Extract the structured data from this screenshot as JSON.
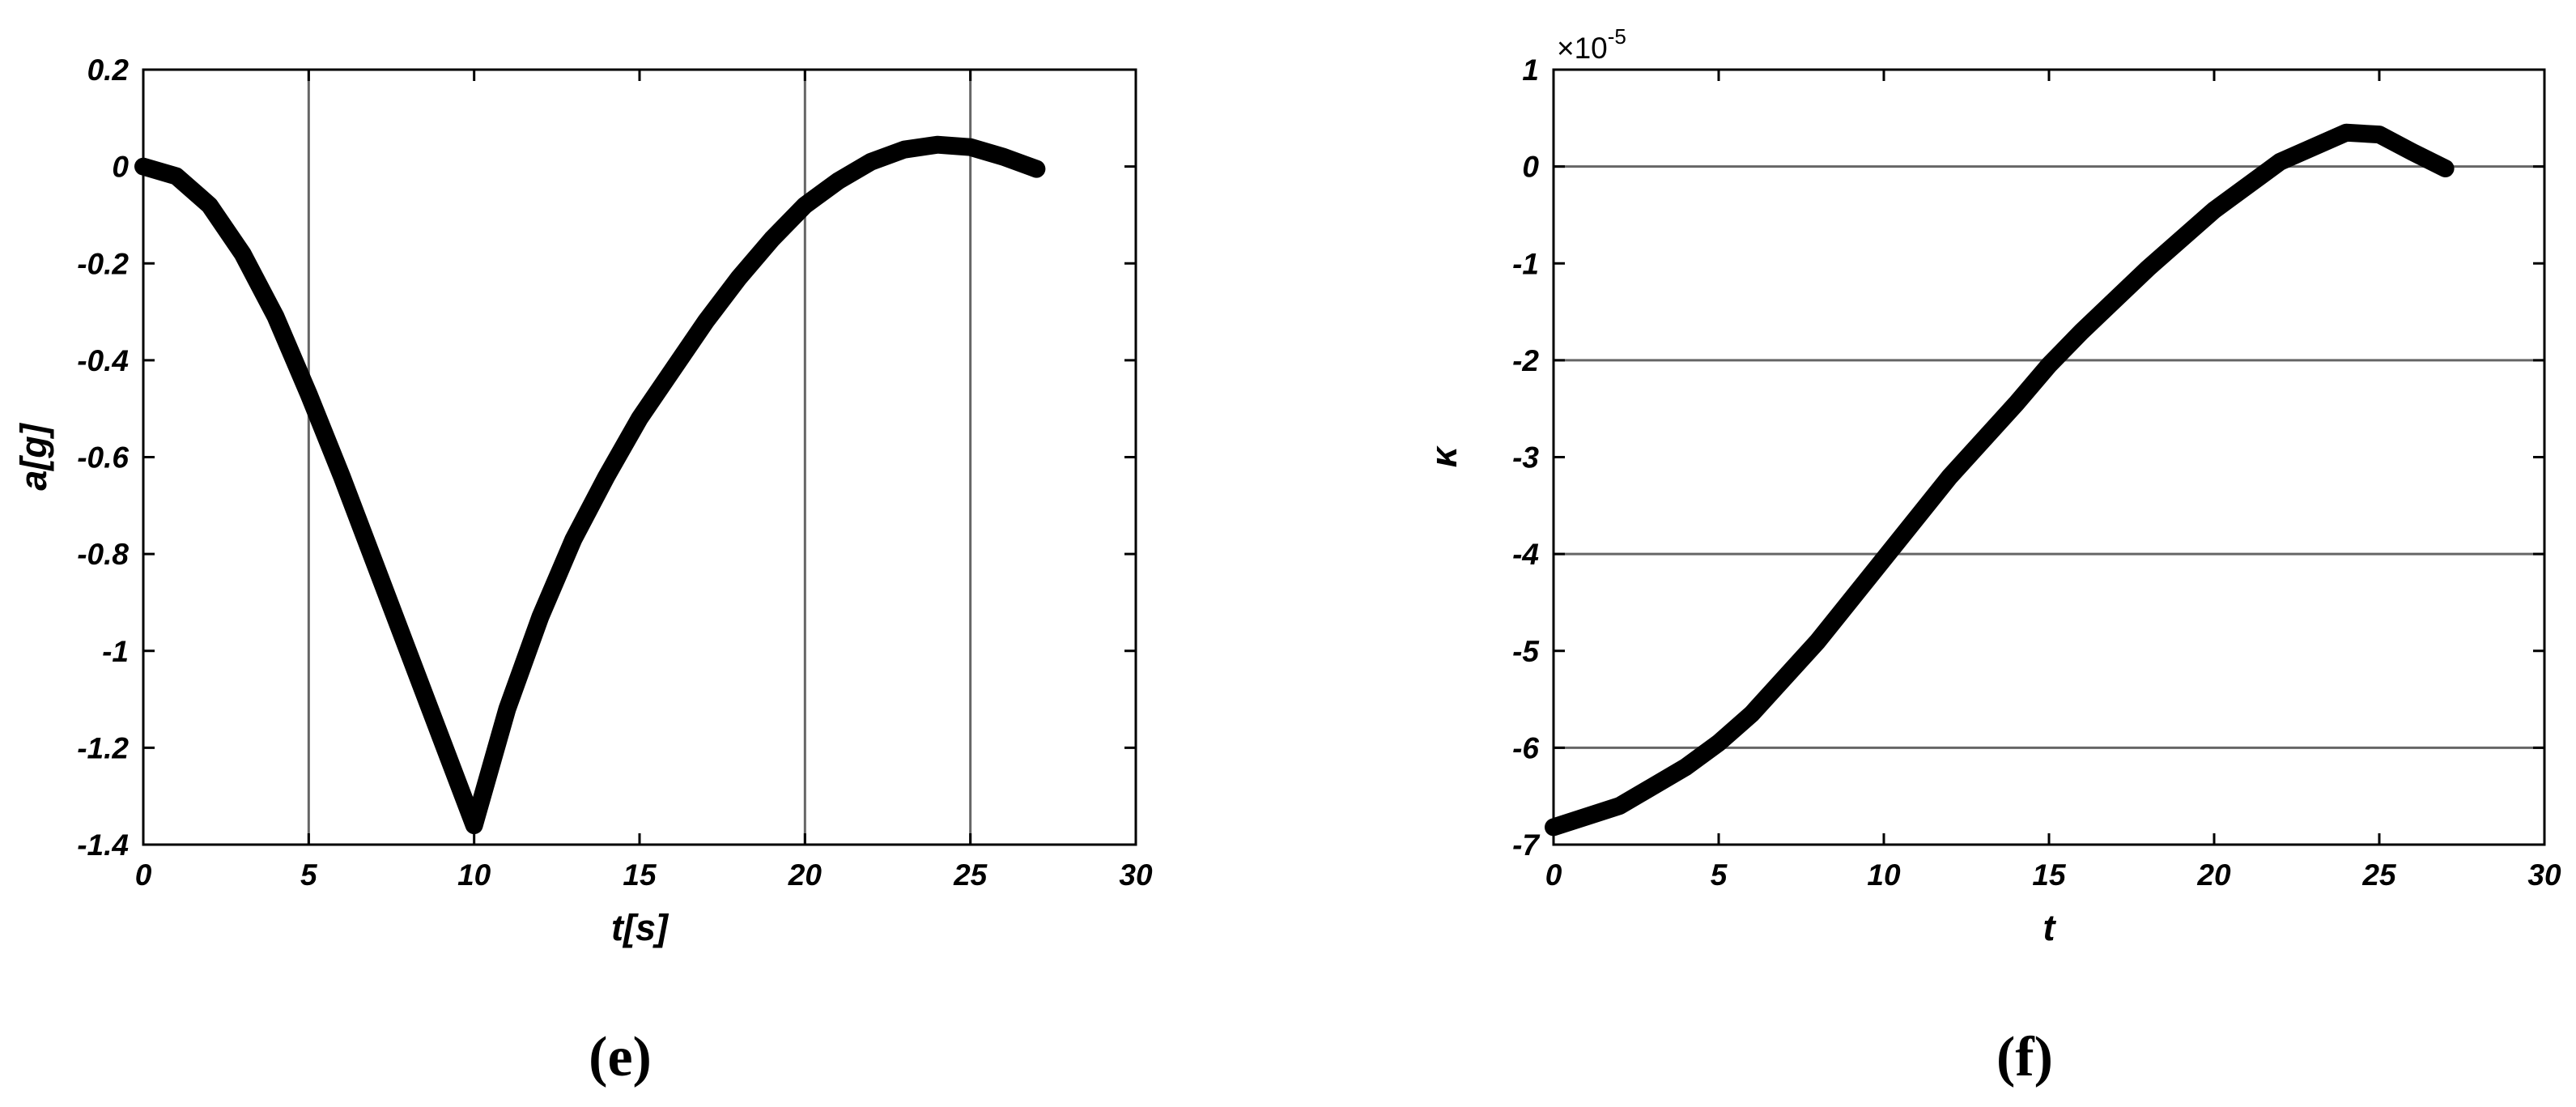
{
  "chart_data": [
    {
      "type": "line",
      "caption": "(e)",
      "x_label": "t[s]",
      "y_label": "a[g]",
      "x": [
        0,
        1,
        2,
        3,
        4,
        5,
        6,
        7,
        8,
        9,
        10,
        11,
        12,
        13,
        14,
        15,
        16,
        17,
        18,
        19,
        20,
        21,
        22,
        23,
        24,
        25,
        26,
        27
      ],
      "series": [
        {
          "color": "#000000",
          "values": [
            0,
            -0.02,
            -0.08,
            -0.18,
            -0.31,
            -0.47,
            -0.64,
            -0.82,
            -1.0,
            -1.18,
            -1.36,
            -1.12,
            -0.93,
            -0.77,
            -0.64,
            -0.52,
            -0.42,
            -0.32,
            -0.23,
            -0.15,
            -0.08,
            -0.03,
            0.01,
            0.035,
            0.045,
            0.04,
            0.02,
            -0.005
          ]
        }
      ],
      "xlim": [
        0,
        30
      ],
      "xticks": [
        0,
        5,
        10,
        15,
        20,
        25,
        30
      ],
      "ylim": [
        -1.4,
        0.2
      ],
      "yticks": [
        0.2,
        0,
        -0.2,
        -0.4,
        -0.6,
        -0.8,
        -1,
        -1.2,
        -1.4
      ],
      "vlines": [
        5,
        20,
        25
      ]
    },
    {
      "type": "line",
      "caption": "(f)",
      "x_label": "t",
      "y_label": "κ",
      "multiplier_label": "×10",
      "multiplier_exponent": "-5",
      "x": [
        0,
        2,
        4,
        5,
        6,
        8,
        10,
        12,
        14,
        15,
        16,
        18,
        20,
        22,
        24,
        25,
        26,
        27
      ],
      "series": [
        {
          "color": "#000000",
          "values": [
            -6.82,
            -6.6,
            -6.2,
            -5.95,
            -5.65,
            -4.9,
            -4.05,
            -3.2,
            -2.45,
            -2.05,
            -1.7,
            -1.05,
            -0.45,
            0.05,
            0.35,
            0.33,
            0.15,
            -0.02
          ]
        }
      ],
      "xlim": [
        0,
        30
      ],
      "xticks": [
        0,
        5,
        10,
        15,
        20,
        25,
        30
      ],
      "ylim": [
        -7,
        1
      ],
      "yticks": [
        1,
        0,
        -1,
        -2,
        -3,
        -4,
        -5,
        -6,
        -7
      ],
      "hlines": [
        0,
        -2,
        -4,
        -6
      ]
    }
  ]
}
